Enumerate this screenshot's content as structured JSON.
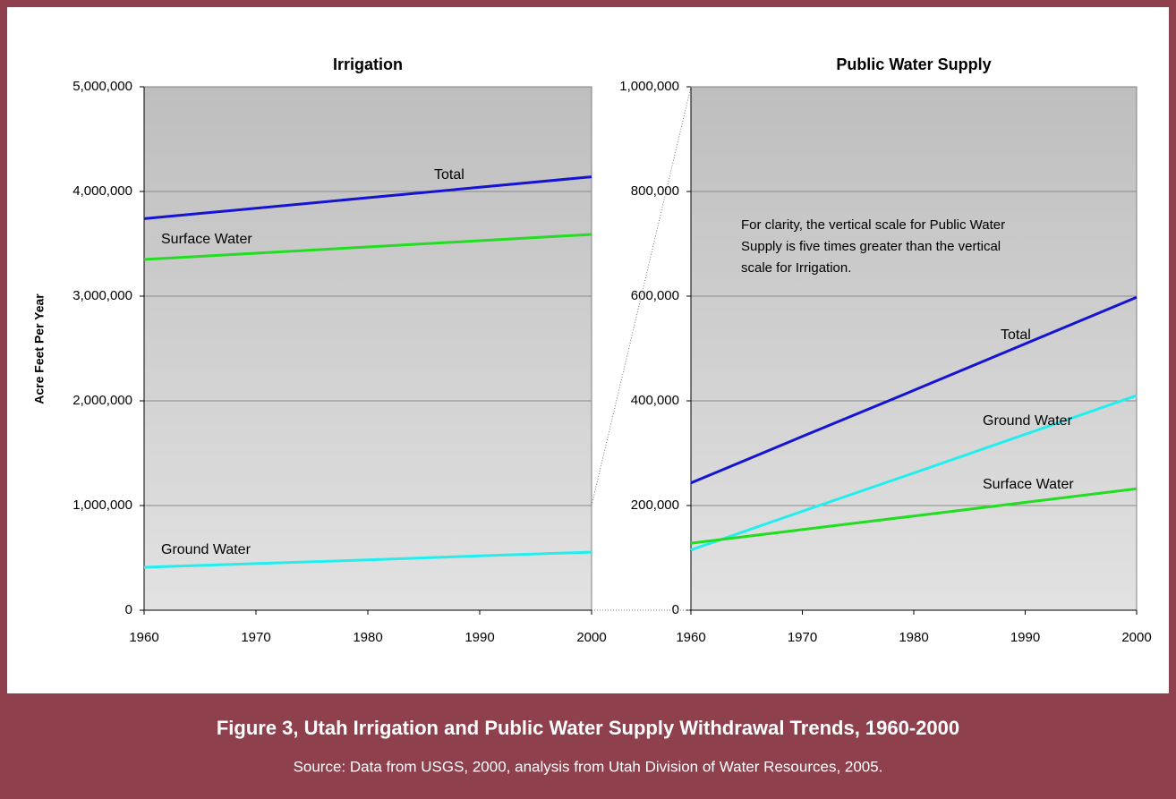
{
  "charts": [
    {
      "type": "line",
      "title": "Irrigation",
      "ylabel": "Acre Feet Per Year",
      "x": [
        1960,
        1970,
        1980,
        1990,
        2000
      ],
      "xlim": [
        1960,
        2000
      ],
      "xticks": [
        1960,
        1970,
        1980,
        1990,
        2000
      ],
      "ylim": [
        0,
        5000000
      ],
      "yticks": [
        0,
        {
          "value": 1000000,
          "label": "1,000,000"
        },
        {
          "value": 2000000,
          "label": "2,000,000"
        },
        {
          "value": 3000000,
          "label": "3,000,000"
        },
        {
          "value": 4000000,
          "label": "4,000,000"
        },
        {
          "value": 5000000,
          "label": "5,000,000"
        }
      ],
      "grid": true,
      "series": [
        {
          "name": "Total",
          "color": "#1414d2",
          "values": [
            3740000,
            3840000,
            3940000,
            4040000,
            4140000
          ]
        },
        {
          "name": "Surface Water",
          "color": "#22dd22",
          "values": [
            3350000,
            3410000,
            3470000,
            3530000,
            3590000
          ]
        },
        {
          "name": "Ground Water",
          "color": "#22eeee",
          "values": [
            410000,
            445000,
            480000,
            520000,
            555000
          ]
        }
      ]
    },
    {
      "type": "line",
      "title": "Public Water Supply",
      "annotation": [
        "For clarity, the vertical scale for Public Water",
        "Supply is five times greater than the vertical",
        "scale for Irrigation."
      ],
      "x": [
        1960,
        1970,
        1980,
        1990,
        2000
      ],
      "xlim": [
        1960,
        2000
      ],
      "xticks": [
        1960,
        1970,
        1980,
        1990,
        2000
      ],
      "ylim": [
        0,
        1000000
      ],
      "yticks": [
        0,
        {
          "value": 200000,
          "label": "200,000"
        },
        {
          "value": 400000,
          "label": "400,000"
        },
        {
          "value": 600000,
          "label": "600,000"
        },
        {
          "value": 800000,
          "label": "800,000"
        },
        {
          "value": 1000000,
          "label": "1,000,000"
        }
      ],
      "grid": true,
      "series": [
        {
          "name": "Total",
          "color": "#1414d2",
          "values": [
            243000,
            332000,
            420000,
            509000,
            598000
          ]
        },
        {
          "name": "Ground Water",
          "color": "#22eeee",
          "values": [
            115000,
            189000,
            262000,
            336000,
            410000
          ]
        },
        {
          "name": "Surface Water",
          "color": "#22dd22",
          "values": [
            128000,
            154000,
            180000,
            206000,
            232000
          ]
        }
      ]
    }
  ],
  "caption": {
    "title": "Figure 3, Utah Irrigation and Public Water Supply Withdrawal Trends, 1960-2000",
    "source": "Source: Data from USGS, 2000, analysis from Utah Division of Water Resources, 2005."
  }
}
